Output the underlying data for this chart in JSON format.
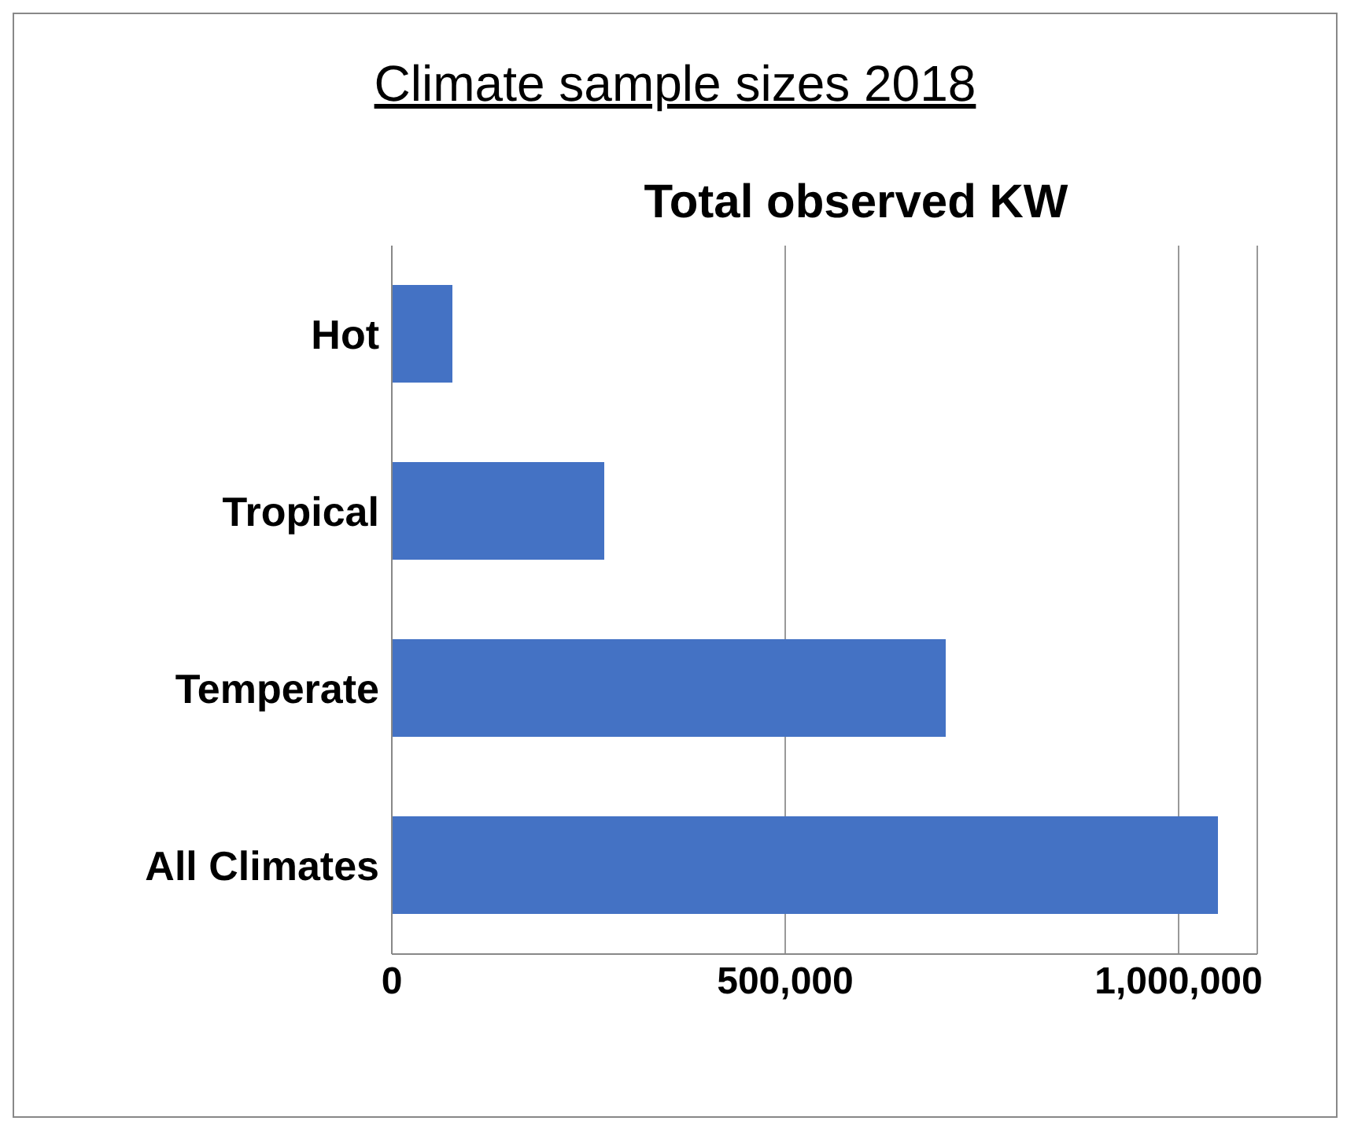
{
  "chart_data": {
    "type": "bar",
    "orientation": "horizontal",
    "title": "Climate sample sizes 2018",
    "subtitle": "Total observed KW",
    "categories": [
      "Hot",
      "Tropical",
      "Temperate",
      "All Climates"
    ],
    "values": [
      77000,
      270000,
      704000,
      1050000
    ],
    "color": "#4472c4",
    "xlim": [
      0,
      1100000
    ],
    "xticks": [
      {
        "value": 0,
        "label": "0"
      },
      {
        "value": 500000,
        "label": "500,000"
      },
      {
        "value": 1000000,
        "label": "1,000,000"
      }
    ],
    "grid": "x"
  }
}
